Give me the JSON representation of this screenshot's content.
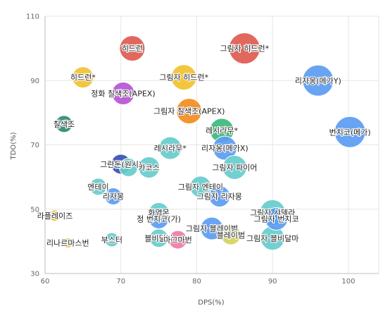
{
  "chart_data": {
    "type": "bubble",
    "xlabel": "DPS(%)",
    "ylabel": "TDO(%)",
    "xlim": [
      60,
      104
    ],
    "ylim": [
      30,
      110
    ],
    "xticks": [
      60,
      70,
      80,
      90,
      100
    ],
    "yticks": [
      30,
      50,
      70,
      90,
      110
    ],
    "grid": true,
    "legend": "none",
    "points": [
      {
        "label": "히드런",
        "x": 71.5,
        "y": 100,
        "size": 18,
        "color": "#e05a4f"
      },
      {
        "label": "그림자 히드런*",
        "x": 86.3,
        "y": 100,
        "size": 22,
        "color": "#e05a4f"
      },
      {
        "label": "히드런*",
        "x": 65.0,
        "y": 91,
        "size": 15,
        "color": "#f2c12e"
      },
      {
        "label": "그림자 히드런*",
        "x": 78.3,
        "y": 91,
        "size": 18,
        "color": "#f2c12e"
      },
      {
        "label": "리자몽(메가Y)",
        "x": 96.0,
        "y": 90,
        "size": 22,
        "color": "#5b9cf2"
      },
      {
        "label": "정화 칠색조(APEX)",
        "x": 70.3,
        "y": 86,
        "size": 16,
        "color": "#b654d6"
      },
      {
        "label": "그림자 칠색조(APEX)",
        "x": 79.0,
        "y": 80.5,
        "size": 18,
        "color": "#f28c1e"
      },
      {
        "label": "칠색조",
        "x": 62.5,
        "y": 76.5,
        "size": 12,
        "color": "#2e8a75"
      },
      {
        "label": "레시라무*",
        "x": 83.3,
        "y": 74.5,
        "size": 17,
        "color": "#3cb878"
      },
      {
        "label": "번치코(메가)",
        "x": 100.2,
        "y": 74,
        "size": 22,
        "color": "#5b9cf2"
      },
      {
        "label": "레시라무*",
        "x": 76.5,
        "y": 69,
        "size": 16,
        "color": "#66cccc"
      },
      {
        "label": "리자몽(메가X)",
        "x": 83.7,
        "y": 69,
        "size": 17,
        "color": "#5b9cf2"
      },
      {
        "label": "그란돈(원시)",
        "x": 70.0,
        "y": 64,
        "size": 14,
        "color": "#3a4fb5"
      },
      {
        "label": "",
        "x": 71.0,
        "y": 63,
        "size": 13,
        "color": "#66cccc"
      },
      {
        "label": "카코스",
        "x": 73.7,
        "y": 63,
        "size": 15,
        "color": "#66cccc"
      },
      {
        "label": "그림자 파이어",
        "x": 85.0,
        "y": 63,
        "size": 17,
        "color": "#66cccc"
      },
      {
        "label": "엔테이",
        "x": 67.0,
        "y": 57,
        "size": 12,
        "color": "#66cccc"
      },
      {
        "label": "그림자 엔테이",
        "x": 80.5,
        "y": 57,
        "size": 15,
        "color": "#66cccc"
      },
      {
        "label": "리자몽",
        "x": 69.0,
        "y": 54,
        "size": 12,
        "color": "#5b9cf2"
      },
      {
        "label": "그림자 리자몽",
        "x": 83.0,
        "y": 54,
        "size": 15,
        "color": "#5b9cf2"
      },
      {
        "label": "화염몬",
        "x": 75.0,
        "y": 49,
        "size": 14,
        "color": "#66cccc"
      },
      {
        "label": "그림자 샤델라",
        "x": 90.0,
        "y": 49,
        "size": 18,
        "color": "#66cccc"
      },
      {
        "label": "라플레이즈",
        "x": 61.3,
        "y": 48,
        "size": 8,
        "color": "#f2c12e"
      },
      {
        "label": "정 번치코(가)",
        "x": 75.0,
        "y": 47,
        "size": 14,
        "color": "#5b9cf2"
      },
      {
        "label": "그림자 번치코",
        "x": 90.5,
        "y": 47,
        "size": 16,
        "color": "#5b9cf2"
      },
      {
        "label": "그림자 블레이범",
        "x": 82.0,
        "y": 44,
        "size": 16,
        "color": "#5b9cf2"
      },
      {
        "label": "블레이범",
        "x": 84.5,
        "y": 42,
        "size": 14,
        "color": "#d4d45a"
      },
      {
        "label": "블비달마",
        "x": 75.0,
        "y": 41,
        "size": 13,
        "color": "#66cccc"
      },
      {
        "label": "마그마번",
        "x": 77.5,
        "y": 40.5,
        "size": 13,
        "color": "#f278a8"
      },
      {
        "label": "부스터",
        "x": 68.8,
        "y": 40.5,
        "size": 10,
        "color": "#66cccc"
      },
      {
        "label": "그림자 블비달마",
        "x": 90.0,
        "y": 41,
        "size": 17,
        "color": "#66cccc"
      },
      {
        "label": "리나르마스번",
        "x": 63.0,
        "y": 39.5,
        "size": 7,
        "color": "#f2c12e"
      }
    ]
  }
}
